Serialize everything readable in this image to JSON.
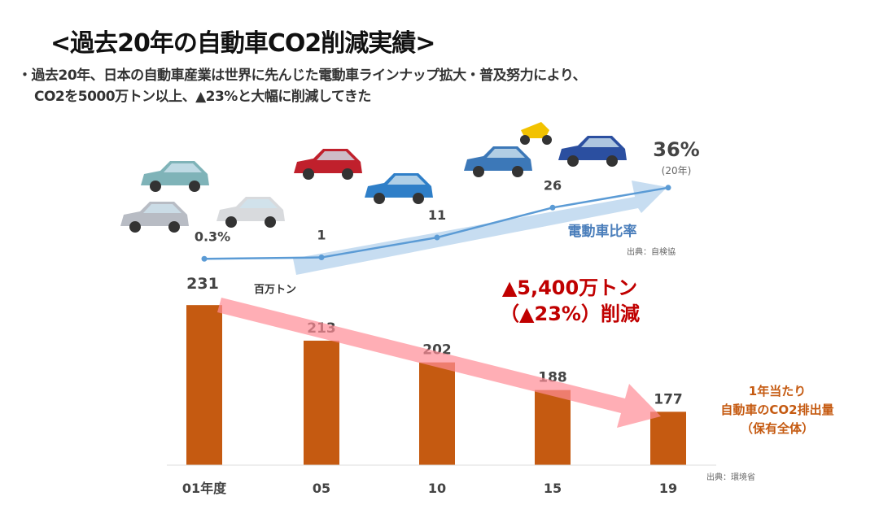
{
  "title": "<過去20年の自動車CO2削減実績>",
  "subtitle_lines": [
    "・過去20年、日本の自動車産業は世界に先んじた電動車ラインナップ拡大・普及努力により、",
    "CO2を5000万トン以上、▲23%と大幅に削減してきた"
  ],
  "chart_data": [
    {
      "type": "line",
      "title": "電動車比率",
      "source": "出典：自検協",
      "x": [
        "01",
        "05",
        "10",
        "15",
        "20"
      ],
      "values": [
        0.3,
        1,
        11,
        26,
        36
      ],
      "value_labels": [
        "0.3%",
        "1",
        "11",
        "26",
        "36%"
      ],
      "last_note": "(20年)",
      "unit": "%",
      "color": "#5b9bd5"
    },
    {
      "type": "bar",
      "title": "1年当たり 自動車のCO2排出量（保有全体）",
      "title_lines": [
        "1年当たり",
        "自動車のCO2排出量",
        "（保有全体）"
      ],
      "source": "出典：環境省",
      "categories": [
        "01年度",
        "05",
        "10",
        "15",
        "19"
      ],
      "values": [
        231,
        213,
        202,
        188,
        177
      ],
      "unit_label": "百万トン",
      "ylim": [
        150,
        240
      ],
      "color": "#c55a11"
    }
  ],
  "annotation": {
    "lines": [
      "▲5,400万トン",
      "（▲23%）削減"
    ],
    "color": "#c00000"
  }
}
